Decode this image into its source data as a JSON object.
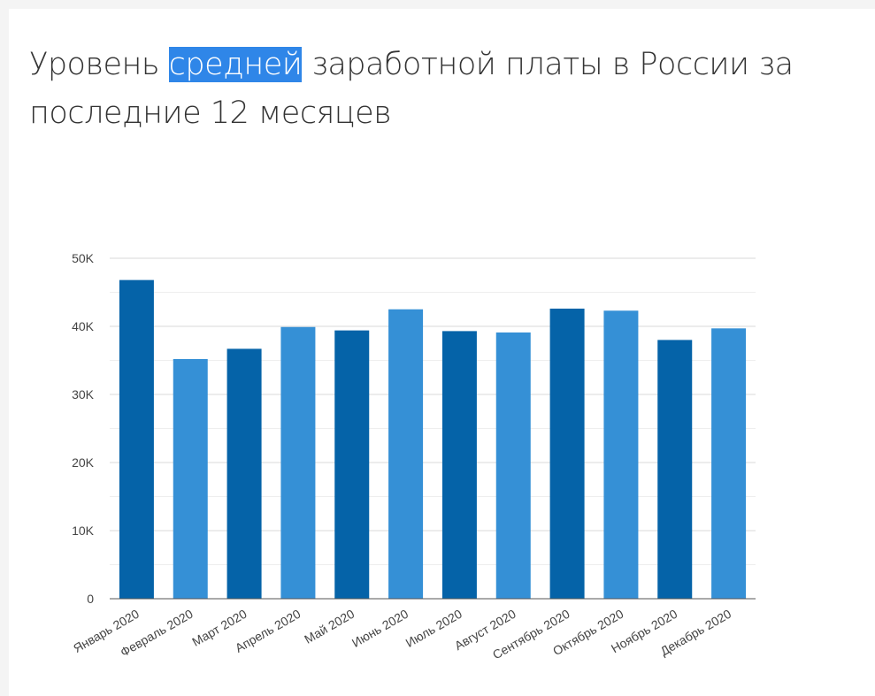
{
  "title": {
    "before": "Уровень ",
    "highlight": "средней",
    "after": " заработной платы в России за последние 12 месяцев"
  },
  "chart_data": {
    "type": "bar",
    "title": "Уровень средней заработной платы в России за последние 12 месяцев",
    "categories": [
      "Январь 2020",
      "Февраль 2020",
      "Март 2020",
      "Апрель 2020",
      "Май 2020",
      "Июнь 2020",
      "Июль 2020",
      "Август 2020",
      "Сентябрь 2020",
      "Октябрь 2020",
      "Ноябрь 2020",
      "Декабрь 2020"
    ],
    "values": [
      46800,
      35200,
      36700,
      39900,
      39400,
      42500,
      39300,
      39100,
      42600,
      42300,
      38000,
      39700
    ],
    "ylim": [
      0,
      50000
    ],
    "yticks": [
      0,
      10000,
      20000,
      30000,
      40000,
      50000
    ],
    "ytick_labels": [
      "0",
      "10K",
      "20K",
      "30K",
      "40K",
      "50K"
    ],
    "grid": true,
    "legend": "none",
    "colors": {
      "dark": "#0563a8",
      "light": "#3590d6",
      "pattern": [
        "dark",
        "light",
        "dark",
        "light",
        "dark",
        "light",
        "dark",
        "light",
        "dark",
        "light",
        "dark",
        "light"
      ],
      "grid": "#d9d9d9",
      "minor_grid": "#eeeeee",
      "axis": "#555555"
    }
  }
}
